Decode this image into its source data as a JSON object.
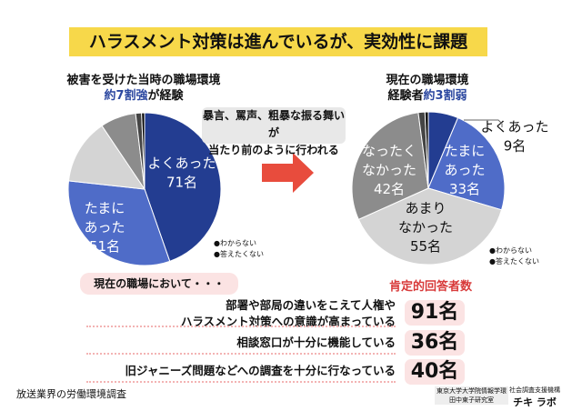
{
  "title": "ハラスメント対策は進んでいるが、実効性に課題",
  "left_title": {
    "line1": "被害を受けた当時の職場環境",
    "hl": "約7割強",
    "rest": "が経験"
  },
  "right_title": {
    "line1": "現在の職場環境",
    "pre": "経験者",
    "hl": "約3割弱"
  },
  "bubble": {
    "line1": "暴言、罵声、粗暴な振る舞いが",
    "line2": "当たり前のように行われる"
  },
  "legend": [
    "●わからない",
    "●答えたくない"
  ],
  "chart_data": [
    {
      "type": "pie",
      "title": "被害を受けた当時の職場環境",
      "categories": [
        "よくあった",
        "たまにあった",
        "あまりなかった",
        "なかった",
        "わからない",
        "答えたくない"
      ],
      "values": [
        71,
        51,
        22,
        12,
        2,
        1
      ],
      "labels": [
        [
          "よくあった",
          "71名"
        ],
        [
          "たまに",
          "あった",
          "51名"
        ],
        null,
        null,
        null,
        null
      ],
      "colors": [
        "#233d91",
        "#4f6cc8",
        "#d4d4d4",
        "#8c8c8c",
        "#444444",
        "#000000"
      ]
    },
    {
      "type": "pie",
      "title": "現在の職場環境",
      "categories": [
        "よくあった",
        "たまにあった",
        "あまりなかった",
        "なったくなかった",
        "わからない",
        "答えたくない"
      ],
      "values": [
        9,
        33,
        55,
        42,
        2,
        1
      ],
      "labels": [
        [
          "よくあった",
          "9名"
        ],
        [
          "たまに",
          "あった",
          "33名"
        ],
        [
          "あまり",
          "なかった",
          "55名"
        ],
        [
          "なったく",
          "なかった",
          "42名"
        ],
        null,
        null
      ],
      "colors": [
        "#233d91",
        "#4f6cc8",
        "#d4d4d4",
        "#8c8c8c",
        "#444444",
        "#000000"
      ]
    }
  ],
  "section_label": "現在の職場において・・・",
  "positive_label": "肯定的回答者数",
  "rows": [
    {
      "text1": "部署や部局の違いをこえて人権や",
      "text2": "ハラスメント対策への意識が高まっている",
      "count": "91名"
    },
    {
      "text1": "相談窓口が十分に機能している",
      "count": "36名"
    },
    {
      "text1": "旧ジャニーズ問題などへの調査を十分に行なっている",
      "count": "40名"
    }
  ],
  "source": "放送業界の労働環境調査",
  "credit1": "東京大学大学院情報学環",
  "credit2": "田中東子研究室",
  "logo": {
    "top": "社会調査支援機構",
    "main": "チキ ラボ"
  }
}
